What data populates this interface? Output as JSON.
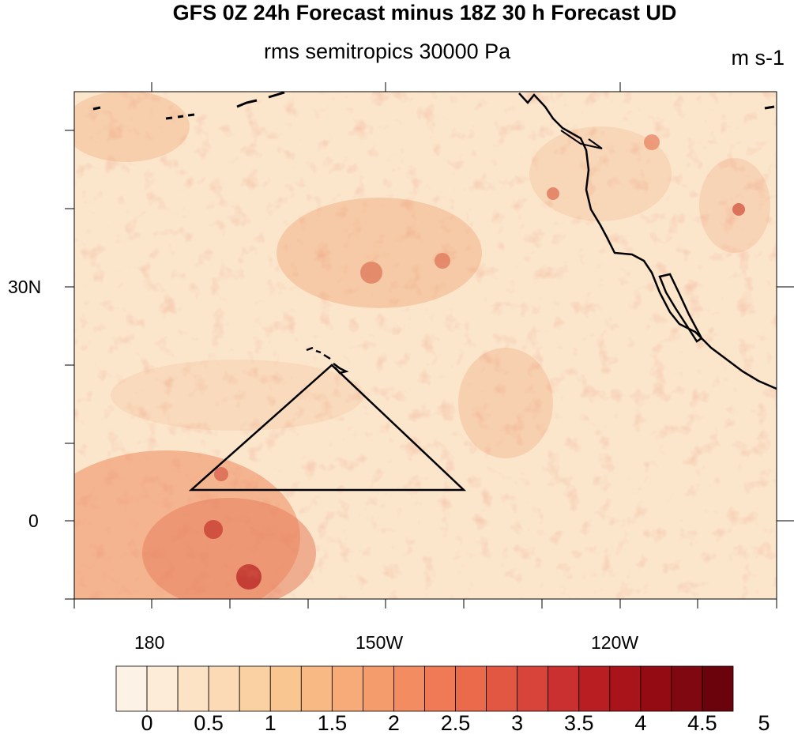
{
  "title": "GFS 0Z 24h Forecast minus 18Z 30 h Forecast UD",
  "subtitle": "rms semitropics 30000 Pa",
  "units": "m s-1",
  "map": {
    "lat_labels": [
      "30N",
      "0"
    ],
    "lon_labels": [
      "180",
      "150W",
      "120W"
    ],
    "fill_colors": {
      "light": "#fbe6cc",
      "medium": "#f2a77f",
      "dark": "#b2181b"
    }
  },
  "colorbar": {
    "labels": [
      "0",
      "0.5",
      "1",
      "1.5",
      "2",
      "2.5",
      "3",
      "3.5",
      "4",
      "4.5",
      "5"
    ],
    "colors": [
      "#fdf2e6",
      "#fcecd8",
      "#fce3c6",
      "#fbdab5",
      "#fad1a2",
      "#f9c591",
      "#f8b985",
      "#f6ab78",
      "#f59c6c",
      "#f38c60",
      "#ef7a55",
      "#ea6a4b",
      "#e25742",
      "#d8443a",
      "#ca3030",
      "#b81e22",
      "#a8141a",
      "#940b13",
      "#800810",
      "#6a030c"
    ]
  }
}
